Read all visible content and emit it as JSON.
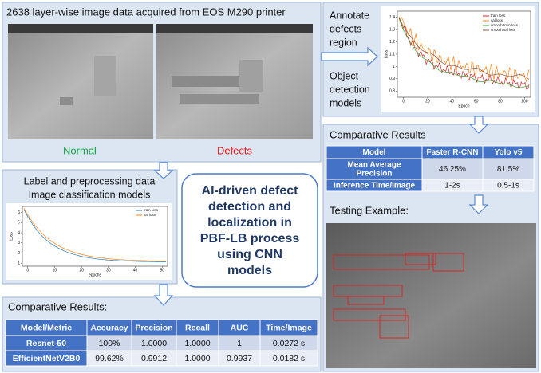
{
  "acquisition": {
    "title": "2638 layer-wise image data acquired from EOS M290 printer",
    "normal": "Normal",
    "defects": "Defects"
  },
  "classification": {
    "lines": [
      "Label and preprocessing data",
      "Image classification models"
    ]
  },
  "detection": {
    "annotate": [
      "Annotate",
      "defects",
      "region"
    ],
    "models": [
      "Object",
      "detection",
      "models"
    ]
  },
  "center": {
    "lines": [
      "AI-driven defect",
      "detection and",
      "localization in",
      "PBF-LB process",
      "using CNN",
      "models"
    ]
  },
  "detection_results": {
    "title": "Comparative Results",
    "table": {
      "header": [
        "Model",
        "Faster R-CNN",
        "Yolo v5"
      ],
      "rows": [
        [
          "Mean Average Precision",
          "46.25%",
          "81.5%"
        ],
        [
          "Inference Time/Image",
          "1-2s",
          "0.5-1s"
        ]
      ]
    },
    "testing": "Testing Example:"
  },
  "classification_results": {
    "title": "Comparative Results:",
    "table": {
      "header": [
        "Model/Metric",
        "Accuracy",
        "Precision",
        "Recall",
        "AUC",
        "Time/Image"
      ],
      "rows": [
        [
          "Resnet-50",
          "100%",
          "1.0000",
          "1.0000",
          "1",
          "0.0272 s"
        ],
        [
          "EfficientNetV2B0",
          "99.62%",
          "0.9912",
          "1.0000",
          "0.9937",
          "0.0182 s"
        ]
      ]
    }
  },
  "plots": [
    {
      "xlabel": "Epoch",
      "ylabel": "Loss",
      "xlim": [
        -5,
        105
      ],
      "ylim": [
        0.75,
        1.45
      ],
      "xticks": [
        0,
        20,
        40,
        60,
        80,
        100
      ],
      "yticks": [
        0.8,
        0.9,
        1.0,
        1.1,
        1.2,
        1.3,
        1.4
      ],
      "legend": [
        {
          "name": "train loss",
          "color": "#d62728"
        },
        {
          "name": "val loss",
          "color": "#ff7f0e"
        },
        {
          "name": "smooth train loss",
          "color": "#2ca02c"
        },
        {
          "name": "smooth val loss",
          "color": "#8c564b"
        }
      ]
    },
    {
      "xlabel": "epochs",
      "ylabel": "Loss",
      "xlim": [
        -2,
        52
      ],
      "ylim": [
        0.7,
        6.6
      ],
      "xticks": [
        0,
        10,
        20,
        30,
        40,
        50
      ],
      "yticks": [
        1,
        2,
        3,
        4,
        5,
        6
      ],
      "legend": [
        {
          "name": "train loss",
          "color": "#1f77b4"
        },
        {
          "name": "val loss",
          "color": "#ff7f0e"
        }
      ]
    }
  ]
}
